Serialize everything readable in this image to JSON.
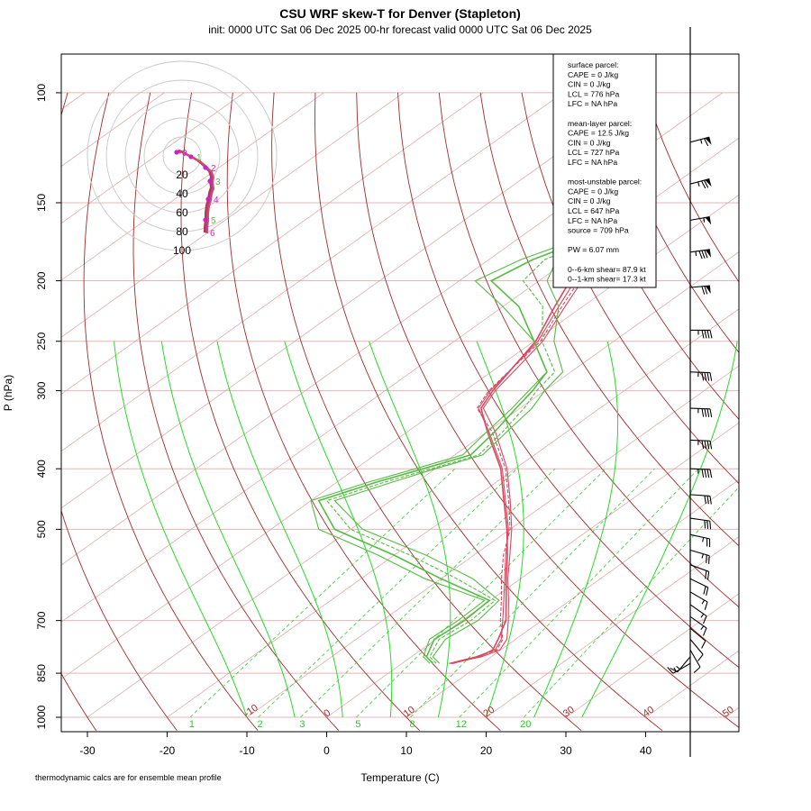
{
  "title": "CSU WRF skew-T for Denver (Stapleton)",
  "subtitle": "init: 0000 UTC Sat 06 Dec 2025    00-hr forecast valid 0000 UTC Sat 06 Dec 2025",
  "footnote": "thermodynamic calcs are for ensemble mean profile",
  "colors": {
    "isobar": "#e8b4b4",
    "isotherm": "#d9a3a3",
    "dry_adiabat": "#a52a2a",
    "moist_adiabat": "#22dd22",
    "mixing_ratio": "#33cc33",
    "temperature": "#d9485f",
    "dewpoint": "#55bb44",
    "hodograph_ring": "#c8c8c8"
  },
  "stats_box": {
    "lines": [
      "surface parcel:",
      "CAPE = 0 J/kg",
      "CIN = 0 J/kg",
      "LCL = 776 hPa",
      "LFC = NA hPa",
      "",
      "mean-layer parcel:",
      "CAPE = 12.5 J/kg",
      "CIN = 0 J/kg",
      "LCL = 727 hPa",
      "LFC = NA hPa",
      "",
      "most-unstable parcel:",
      "CAPE = 0 J/kg",
      "CIN = 0 J/kg",
      "LCL = 647 hPa",
      "LFC = NA hPa",
      "source = 709 hPa",
      "",
      "PW =  6.07 mm",
      "",
      "0--6-km shear= 87.9 kt",
      "0--1-km shear= 17.3 kt"
    ]
  },
  "hodograph": {
    "ring_labels": [
      "20",
      "40",
      "60",
      "80",
      "100"
    ]
  },
  "chart_data": {
    "type": "line",
    "title": "CSU WRF skew-T for Denver (Stapleton)",
    "xlabel": "Temperature (C)",
    "ylabel": "P (hPa)",
    "x_ticks": [
      -30,
      -20,
      -10,
      0,
      10,
      20,
      30,
      40
    ],
    "pressure_ticks": [
      100,
      150,
      200,
      250,
      300,
      400,
      500,
      700,
      850,
      1000
    ],
    "xlim": [
      -33,
      51
    ],
    "ylim_hpa": [
      1000,
      100
    ],
    "dry_adiabat_labels": [
      -10,
      0,
      10,
      20,
      30,
      40,
      50
    ],
    "mixing_ratio_labels": [
      1,
      2,
      3,
      5,
      8,
      12,
      20
    ],
    "series": [
      {
        "name": "Temperature",
        "members": [
          {
            "points": [
              [
                820,
                5.9
              ],
              [
                800,
                8.1
              ],
              [
                780,
                9.3
              ],
              [
                750,
                8.2
              ],
              [
                700,
                5.1
              ],
              [
                650,
                1.7
              ],
              [
                600,
                -2.0
              ],
              [
                550,
                -6.0
              ],
              [
                500,
                -10.2
              ],
              [
                450,
                -15.6
              ],
              [
                400,
                -21.6
              ],
              [
                350,
                -29.6
              ],
              [
                320,
                -35.2
              ],
              [
                300,
                -36.8
              ],
              [
                250,
                -39.5
              ],
              [
                220,
                -43.0
              ],
              [
                200,
                -45.5
              ],
              [
                180,
                -48.8
              ],
              [
                160,
                -52.7
              ],
              [
                140,
                -57.7
              ],
              [
                120,
                -62.5
              ]
            ]
          },
          {
            "points": [
              [
                820,
                6.2
              ],
              [
                800,
                8.5
              ],
              [
                780,
                9.0
              ],
              [
                750,
                7.8
              ],
              [
                700,
                5.5
              ],
              [
                650,
                2.0
              ],
              [
                600,
                -1.8
              ],
              [
                550,
                -5.8
              ],
              [
                500,
                -10.4
              ],
              [
                450,
                -15.8
              ],
              [
                400,
                -21.8
              ],
              [
                350,
                -29.8
              ],
              [
                320,
                -34.9
              ],
              [
                300,
                -36.5
              ],
              [
                250,
                -39.8
              ],
              [
                220,
                -43.5
              ],
              [
                200,
                -46.1
              ],
              [
                180,
                -49.4
              ],
              [
                160,
                -53.1
              ],
              [
                140,
                -58.1
              ],
              [
                120,
                -63.0
              ]
            ]
          },
          {
            "points": [
              [
                820,
                6.4
              ],
              [
                800,
                8.3
              ],
              [
                780,
                9.5
              ],
              [
                750,
                8.4
              ],
              [
                700,
                4.8
              ],
              [
                650,
                1.4
              ],
              [
                600,
                -2.4
              ],
              [
                550,
                -6.3
              ],
              [
                500,
                -10.0
              ],
              [
                450,
                -15.2
              ],
              [
                400,
                -21.2
              ],
              [
                350,
                -29.2
              ],
              [
                320,
                -35.4
              ],
              [
                300,
                -37.0
              ],
              [
                250,
                -39.2
              ],
              [
                220,
                -42.6
              ],
              [
                200,
                -45.0
              ],
              [
                180,
                -48.3
              ],
              [
                160,
                -52.2
              ],
              [
                140,
                -57.3
              ],
              [
                120,
                -62.1
              ]
            ]
          },
          {
            "points": [
              [
                820,
                6.0
              ],
              [
                800,
                8.8
              ],
              [
                780,
                9.9
              ],
              [
                750,
                8.9
              ],
              [
                700,
                5.8
              ],
              [
                650,
                2.3
              ],
              [
                600,
                -1.6
              ],
              [
                550,
                -5.5
              ],
              [
                500,
                -9.8
              ],
              [
                450,
                -15.0
              ],
              [
                400,
                -21.0
              ],
              [
                350,
                -28.8
              ],
              [
                320,
                -34.6
              ],
              [
                300,
                -36.2
              ],
              [
                250,
                -38.9
              ],
              [
                220,
                -42.2
              ],
              [
                200,
                -44.6
              ],
              [
                180,
                -47.9
              ],
              [
                160,
                -51.8
              ],
              [
                140,
                -56.9
              ],
              [
                120,
                -61.8
              ]
            ]
          }
        ]
      },
      {
        "name": "Dewpoint",
        "members": [
          {
            "points": [
              [
                820,
                3.5
              ],
              [
                800,
                1.5
              ],
              [
                750,
                -0.8
              ],
              [
                700,
                -0.5
              ],
              [
                650,
                -0.7
              ],
              [
                600,
                -12
              ],
              [
                550,
                -22
              ],
              [
                500,
                -34
              ],
              [
                450,
                -40
              ],
              [
                420,
                -36
              ],
              [
                400,
                -32.5
              ],
              [
                380,
                -29
              ],
              [
                350,
                -30
              ],
              [
                320,
                -31
              ],
              [
                300,
                -32
              ],
              [
                280,
                -33
              ],
              [
                250,
                -40
              ],
              [
                220,
                -50
              ],
              [
                200,
                -58
              ],
              [
                185,
                -56
              ],
              [
                170,
                -52
              ]
            ]
          },
          {
            "points": [
              [
                820,
                3.9
              ],
              [
                800,
                1.9
              ],
              [
                750,
                -0.2
              ],
              [
                700,
                0.3
              ],
              [
                650,
                -0.1
              ],
              [
                600,
                -10
              ],
              [
                550,
                -20
              ],
              [
                500,
                -32
              ],
              [
                450,
                -39
              ],
              [
                420,
                -35
              ],
              [
                400,
                -31.5
              ],
              [
                380,
                -28
              ],
              [
                350,
                -29
              ],
              [
                320,
                -30.5
              ],
              [
                300,
                -31.5
              ],
              [
                280,
                -33
              ],
              [
                250,
                -40
              ],
              [
                220,
                -48
              ],
              [
                200,
                -56
              ],
              [
                185,
                -54.5
              ],
              [
                170,
                -51
              ]
            ]
          },
          {
            "points": [
              [
                820,
                4.3
              ],
              [
                800,
                2.3
              ],
              [
                750,
                0.4
              ],
              [
                700,
                1.1
              ],
              [
                650,
                0.6
              ],
              [
                600,
                -8
              ],
              [
                550,
                -18
              ],
              [
                500,
                -30
              ],
              [
                450,
                -38
              ],
              [
                420,
                -34
              ],
              [
                400,
                -30.5
              ],
              [
                380,
                -27
              ],
              [
                350,
                -28
              ],
              [
                320,
                -29.5
              ],
              [
                300,
                -31
              ],
              [
                280,
                -32
              ],
              [
                250,
                -39
              ],
              [
                220,
                -45
              ],
              [
                200,
                -52
              ],
              [
                185,
                -53
              ],
              [
                170,
                -50
              ]
            ]
          },
          {
            "points": [
              [
                820,
                4.7
              ],
              [
                800,
                2.7
              ],
              [
                750,
                1.2
              ],
              [
                700,
                2.0
              ],
              [
                650,
                1.1
              ],
              [
                600,
                -6
              ],
              [
                550,
                -16
              ],
              [
                500,
                -28.5
              ],
              [
                450,
                -37
              ],
              [
                420,
                -33
              ],
              [
                400,
                -30
              ],
              [
                380,
                -26.5
              ],
              [
                350,
                -27.5
              ],
              [
                320,
                -28.5
              ],
              [
                300,
                -30
              ],
              [
                280,
                -31
              ],
              [
                250,
                -37.5
              ],
              [
                220,
                -43
              ],
              [
                200,
                -49
              ],
              [
                185,
                -51.5
              ],
              [
                170,
                -49
              ]
            ]
          }
        ]
      }
    ],
    "wind_barbs": [
      {
        "p": 120,
        "dir": 255,
        "kt": 65
      },
      {
        "p": 140,
        "dir": 255,
        "kt": 75
      },
      {
        "p": 160,
        "dir": 260,
        "kt": 55
      },
      {
        "p": 180,
        "dir": 262,
        "kt": 85
      },
      {
        "p": 205,
        "dir": 265,
        "kt": 70
      },
      {
        "p": 240,
        "dir": 270,
        "kt": 45
      },
      {
        "p": 280,
        "dir": 272,
        "kt": 45
      },
      {
        "p": 320,
        "dir": 272,
        "kt": 45
      },
      {
        "p": 360,
        "dir": 272,
        "kt": 45
      },
      {
        "p": 400,
        "dir": 272,
        "kt": 45
      },
      {
        "p": 440,
        "dir": 274,
        "kt": 30
      },
      {
        "p": 480,
        "dir": 278,
        "kt": 30
      },
      {
        "p": 510,
        "dir": 282,
        "kt": 25
      },
      {
        "p": 540,
        "dir": 286,
        "kt": 25
      },
      {
        "p": 570,
        "dir": 290,
        "kt": 20
      },
      {
        "p": 600,
        "dir": 296,
        "kt": 20
      },
      {
        "p": 630,
        "dir": 300,
        "kt": 15
      },
      {
        "p": 660,
        "dir": 305,
        "kt": 15
      },
      {
        "p": 690,
        "dir": 305,
        "kt": 15
      },
      {
        "p": 720,
        "dir": 310,
        "kt": 10
      },
      {
        "p": 750,
        "dir": 320,
        "kt": 10
      },
      {
        "p": 780,
        "dir": 330,
        "kt": 10
      },
      {
        "p": 800,
        "dir": 40,
        "kt": 15
      },
      {
        "p": 820,
        "dir": 60,
        "kt": 15
      }
    ],
    "hodograph_points": {
      "u": [
        -15,
        -14,
        -10,
        -6,
        -2,
        2,
        6,
        10,
        14,
        20,
        28,
        38,
        48,
        58,
        70,
        80,
        90
      ],
      "v": [
        5,
        3,
        0,
        -1,
        -2,
        -2,
        -2,
        -3,
        -4,
        -6,
        -10,
        -12,
        -13,
        -14,
        -14,
        -14,
        -14
      ],
      "height_labels_km": [
        "0",
        "1",
        "2",
        "3",
        "4",
        "5",
        "6"
      ]
    }
  }
}
